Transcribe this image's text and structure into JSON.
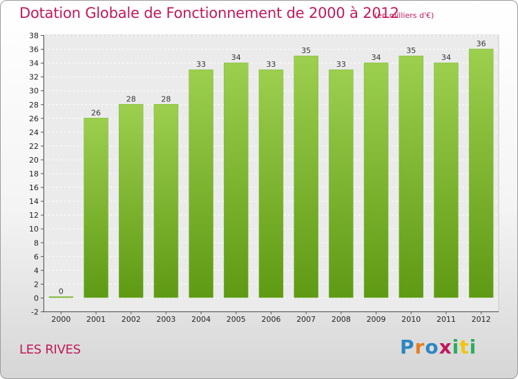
{
  "title": "Dotation Globale de Fonctionnement de 2000 à 2012",
  "unit_note": "(en milliers d'€)",
  "commune": "LES RIVES",
  "logo": {
    "letters": [
      "P",
      "r",
      "o",
      "x",
      "i",
      "t",
      "i"
    ],
    "colors": [
      "#2e86c1",
      "#e67e22",
      "#2e86c1",
      "#c2185b",
      "#27ae60",
      "#f1c40f",
      "#27ae60"
    ]
  },
  "colors": {
    "bar_top": "#9ccf4e",
    "bar_bottom": "#5f9a14",
    "title": "#c2185b"
  },
  "chart_data": {
    "type": "bar",
    "title": "Dotation Globale de Fonctionnement de 2000 à 2012",
    "categories": [
      "2000",
      "2001",
      "2002",
      "2003",
      "2004",
      "2005",
      "2006",
      "2007",
      "2008",
      "2009",
      "2010",
      "2011",
      "2012"
    ],
    "values": [
      0,
      26,
      28,
      28,
      33,
      34,
      33,
      35,
      33,
      34,
      35,
      34,
      36
    ],
    "data_labels": [
      "0",
      "26",
      "28",
      "28",
      "33",
      "34",
      "33",
      "35",
      "33",
      "34",
      "35",
      "34",
      "36"
    ],
    "ylim": [
      -2,
      38
    ],
    "yticks": [
      -2,
      0,
      2,
      4,
      6,
      8,
      10,
      12,
      14,
      16,
      18,
      20,
      22,
      24,
      26,
      28,
      30,
      32,
      34,
      36,
      38
    ],
    "grid": "horizontal dashed"
  }
}
